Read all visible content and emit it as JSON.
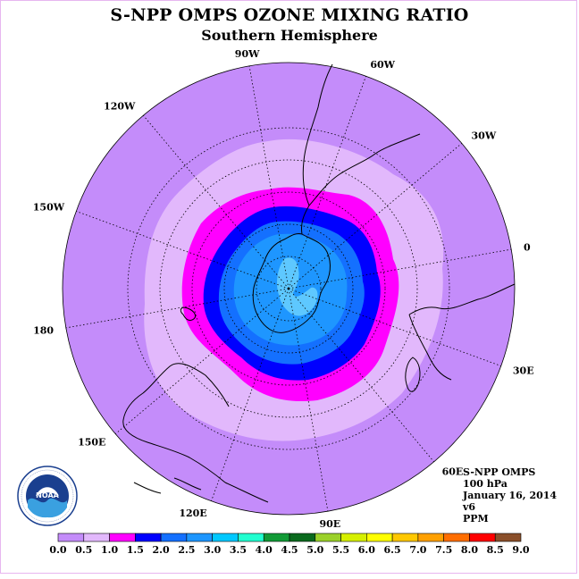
{
  "title": "S-NPP OMPS OZONE MIXING RATIO",
  "subtitle": "Southern Hemisphere",
  "longitude_labels": [
    {
      "text": "90W",
      "deg": -90
    },
    {
      "text": "60W",
      "deg": -60
    },
    {
      "text": "30W",
      "deg": -30
    },
    {
      "text": "0",
      "deg": 0
    },
    {
      "text": "30E",
      "deg": 30
    },
    {
      "text": "60E",
      "deg": 60
    },
    {
      "text": "90E",
      "deg": 90
    },
    {
      "text": "120E",
      "deg": 120
    },
    {
      "text": "150E",
      "deg": 150
    },
    {
      "text": "180",
      "deg": 180
    },
    {
      "text": "150W",
      "deg": -150
    },
    {
      "text": "120W",
      "deg": -120
    }
  ],
  "info": {
    "instrument": "S-NPP OMPS",
    "level": "100 hPa",
    "date": "January 16, 2014",
    "version": "v6",
    "units": "PPM"
  },
  "logo": {
    "text": "NOAA",
    "ring_text": "NATIONAL OCEANIC AND ATMOSPHERIC ADMINISTRATION · U.S. DEPARTMENT OF COMMERCE"
  },
  "colorbar": {
    "ticks": [
      "0.0",
      "0.5",
      "1.0",
      "1.5",
      "2.0",
      "2.5",
      "3.0",
      "3.5",
      "4.0",
      "4.5",
      "5.0",
      "5.5",
      "6.0",
      "6.5",
      "7.0",
      "7.5",
      "8.0",
      "8.5",
      "9.0"
    ],
    "colors": [
      "#c48cfa",
      "#e2b8fc",
      "#ff00ff",
      "#0000ff",
      "#1470ff",
      "#1e96ff",
      "#00c8ff",
      "#22ffd0",
      "#129a36",
      "#0a6a1e",
      "#9bd12a",
      "#d6f000",
      "#ffff00",
      "#ffc800",
      "#ffa000",
      "#ff6e00",
      "#ff0000",
      "#8a4f2a"
    ]
  },
  "field_colors": {
    "background_level": "#c48cfa",
    "level_0_5": "#e2b8fc",
    "level_1_0": "#ff00ff",
    "level_1_5": "#0000ff",
    "level_2_0": "#1470ff",
    "level_2_5": "#1e96ff",
    "level_3_0": "#5ec8ff"
  }
}
